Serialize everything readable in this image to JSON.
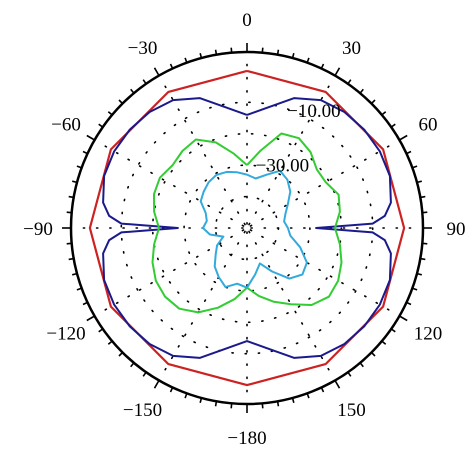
{
  "chart_data": {
    "type": "polar",
    "angle_labels": [
      {
        "angle": 0,
        "text": "0"
      },
      {
        "angle": 30,
        "text": "30"
      },
      {
        "angle": 60,
        "text": "60"
      },
      {
        "angle": 90,
        "text": "90"
      },
      {
        "angle": 120,
        "text": "120"
      },
      {
        "angle": 150,
        "text": "150"
      },
      {
        "angle": 180,
        "text": "−180"
      },
      {
        "angle": -150,
        "text": "−150"
      },
      {
        "angle": -120,
        "text": "−120"
      },
      {
        "angle": -90,
        "text": "−90"
      },
      {
        "angle": -60,
        "text": "−60"
      },
      {
        "angle": -30,
        "text": "−30"
      }
    ],
    "radial_labels": [
      {
        "value": -10,
        "text": "−10.00"
      },
      {
        "value": -30,
        "text": "−30.00"
      }
    ],
    "r_range": [
      -50,
      6
    ],
    "grid": true,
    "series": [
      {
        "color": "#cc2222",
        "angles": [
          0,
          30,
          60,
          90,
          120,
          150,
          180,
          210,
          240,
          270,
          300,
          330
        ],
        "values": [
          0,
          0,
          0,
          0,
          0,
          0,
          0,
          0,
          0,
          0,
          0,
          0
        ]
      },
      {
        "color": "#1a1a8c",
        "angles": [
          0,
          10,
          20,
          30,
          40,
          50,
          60,
          70,
          80,
          85,
          88,
          90,
          92,
          95,
          100,
          110,
          120,
          130,
          140,
          150,
          160,
          170,
          180,
          190,
          200,
          210,
          220,
          230,
          240,
          250,
          260,
          265,
          268,
          270,
          272,
          275,
          280,
          290,
          300,
          310,
          320,
          330,
          340,
          350
        ],
        "values": [
          -14,
          -11,
          -6,
          -3,
          -1.8,
          -1.3,
          -1.2,
          -1.6,
          -3.5,
          -6,
          -10,
          -28,
          -10,
          -6,
          -3.5,
          -1.6,
          -1.2,
          -1.3,
          -1.8,
          -3,
          -6,
          -11,
          -14,
          -11,
          -6,
          -3,
          -1.8,
          -1.3,
          -1.2,
          -1.6,
          -3.5,
          -6,
          -10,
          -28,
          -10,
          -6,
          -3.5,
          -1.6,
          -1.2,
          -1.3,
          -1.8,
          -3,
          -6,
          -11
        ]
      },
      {
        "color": "#33cc33",
        "angles": [
          0,
          10,
          20,
          30,
          40,
          50,
          60,
          70,
          80,
          90,
          100,
          110,
          120,
          130,
          140,
          150,
          160,
          170,
          180,
          190,
          200,
          210,
          220,
          230,
          240,
          250,
          260,
          270,
          280,
          290,
          300,
          310,
          320,
          330,
          340,
          350
        ],
        "values": [
          -30,
          -25,
          -18,
          -17,
          -18.5,
          -21,
          -21,
          -19,
          -20,
          -22,
          -20,
          -18,
          -16.5,
          -16,
          -18,
          -22,
          -25,
          -28,
          -31,
          -27,
          -23,
          -19,
          -16.5,
          -16,
          -16.5,
          -18,
          -20,
          -22,
          -20,
          -18.5,
          -18,
          -19,
          -18,
          -17.5,
          -21,
          -26
        ]
      },
      {
        "color": "#33aadd",
        "angles": [
          0,
          10,
          20,
          30,
          40,
          50,
          60,
          70,
          80,
          90,
          100,
          110,
          120,
          130,
          140,
          150,
          160,
          170,
          180,
          190,
          200,
          210,
          220,
          230,
          240,
          250,
          260,
          270,
          280,
          290,
          300,
          310,
          320,
          330,
          340,
          350
        ],
        "values": [
          -33,
          -34,
          -32,
          -29,
          -30,
          -32,
          -35,
          -37,
          -38,
          -37,
          -36,
          -32,
          -28,
          -27,
          -29,
          -34,
          -38,
          -35,
          -31,
          -32,
          -30,
          -32,
          -34,
          -37,
          -39,
          -42,
          -38,
          -36,
          -37,
          -36,
          -33,
          -32,
          -31,
          -30.5,
          -31,
          -32
        ]
      }
    ]
  }
}
